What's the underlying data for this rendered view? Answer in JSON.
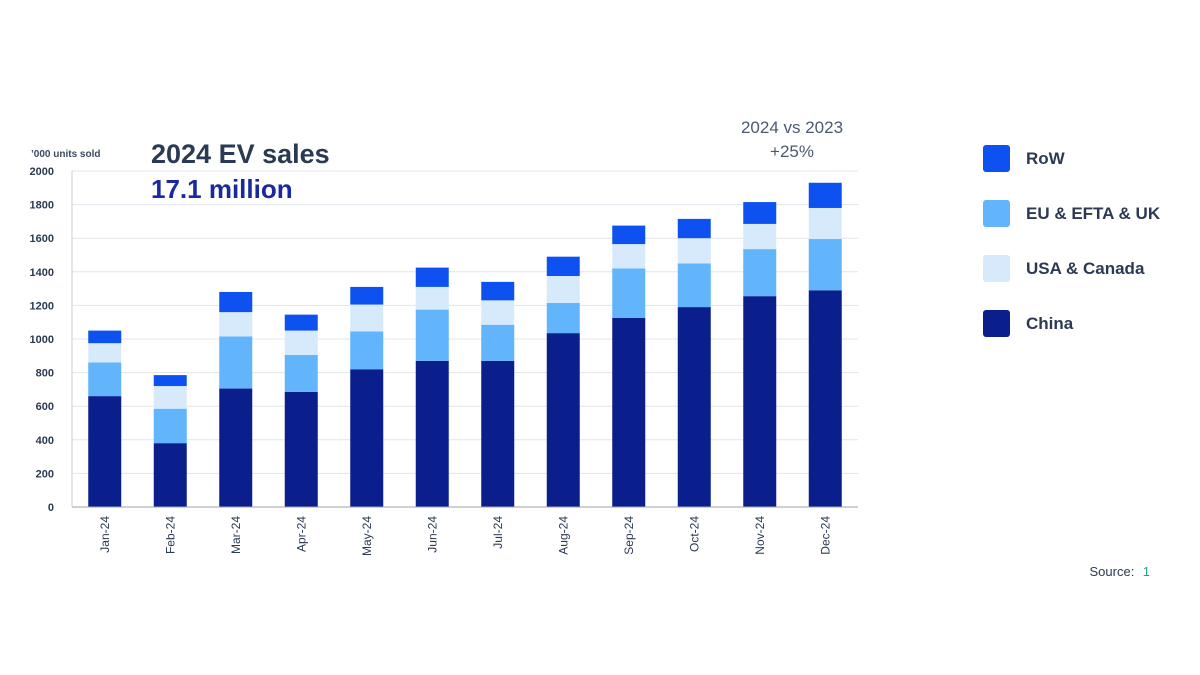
{
  "chart_data": {
    "type": "bar",
    "stacked": true,
    "title": "2024 EV sales",
    "subtitle": "17.1 million",
    "ylabel": "’000 units sold",
    "ylim": [
      0,
      2000
    ],
    "yticks": [
      0,
      200,
      400,
      600,
      800,
      1000,
      1200,
      1400,
      1600,
      1800,
      2000
    ],
    "grid": true,
    "legend_position": "right",
    "categories": [
      "Jan-24",
      "Feb-24",
      "Mar-24",
      "Apr-24",
      "May-24",
      "Jun-24",
      "Jul-24",
      "Aug-24",
      "Sep-24",
      "Oct-24",
      "Nov-24",
      "Dec-24"
    ],
    "series": [
      {
        "name": "China",
        "color": "#0b1f8c",
        "values": [
          660,
          380,
          705,
          685,
          820,
          870,
          870,
          1035,
          1125,
          1190,
          1255,
          1290
        ]
      },
      {
        "name": "USA & Canada",
        "color": "#d6eafb",
        "values": [
          115,
          135,
          145,
          145,
          160,
          135,
          145,
          160,
          145,
          150,
          150,
          185
        ]
      },
      {
        "name": "EU & EFTA & UK",
        "color": "#62b4fb",
        "values": [
          200,
          205,
          310,
          220,
          225,
          305,
          215,
          180,
          295,
          260,
          280,
          305
        ]
      },
      {
        "name": "RoW",
        "color": "#0d52f0",
        "values": [
          75,
          65,
          120,
          95,
          105,
          115,
          110,
          115,
          110,
          115,
          130,
          150
        ]
      }
    ],
    "stack_order": [
      "China",
      "EU & EFTA & UK",
      "USA & Canada",
      "RoW"
    ],
    "legend_order": [
      "RoW",
      "EU & EFTA & UK",
      "USA & Canada",
      "China"
    ],
    "annotation": [
      "2024 vs 2023",
      "+25%"
    ]
  },
  "source": {
    "label": "Source:",
    "ref": "1"
  }
}
